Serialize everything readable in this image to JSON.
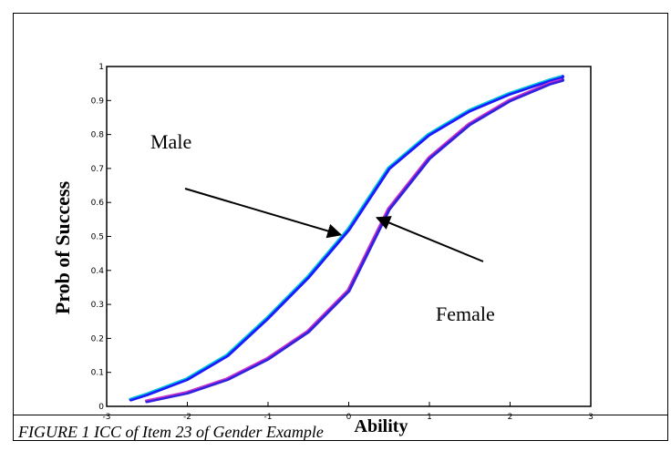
{
  "chart_data": {
    "type": "line",
    "title": "",
    "xlabel": "Ability",
    "ylabel": "Prob of Success",
    "xlim": [
      -3,
      3
    ],
    "ylim": [
      0,
      1
    ],
    "x_ticks": [
      -3,
      -2,
      -1,
      0,
      1,
      2,
      3
    ],
    "y_ticks": [
      0,
      0.1,
      0.2,
      0.3,
      0.4,
      0.5,
      0.6,
      0.7,
      0.8,
      0.9,
      1
    ],
    "grid": false,
    "series": [
      {
        "name": "Male",
        "colors": [
          "#1a1aff",
          "#00c8d8"
        ],
        "x": [
          -2.7,
          -2.5,
          -2.0,
          -1.5,
          -1.0,
          -0.5,
          0.0,
          0.5,
          1.0,
          1.5,
          2.0,
          2.5,
          2.65
        ],
        "values": [
          0.02,
          0.035,
          0.08,
          0.15,
          0.26,
          0.38,
          0.52,
          0.7,
          0.8,
          0.87,
          0.92,
          0.96,
          0.97
        ]
      },
      {
        "name": "Female",
        "colors": [
          "#3322dd",
          "#cc33cc"
        ],
        "x": [
          -2.5,
          -2.0,
          -1.5,
          -1.0,
          -0.5,
          0.0,
          0.5,
          1.0,
          1.5,
          2.0,
          2.5,
          2.65
        ],
        "values": [
          0.015,
          0.04,
          0.08,
          0.14,
          0.22,
          0.34,
          0.58,
          0.73,
          0.83,
          0.9,
          0.95,
          0.96
        ]
      }
    ],
    "annotations": [
      {
        "text": "Male",
        "points_to": [
          -0.1,
          0.505
        ]
      },
      {
        "text": "Female",
        "points_to": [
          0.35,
          0.555
        ]
      }
    ]
  },
  "caption": "FIGURE 1 ICC of Item 23 of Gender Example"
}
